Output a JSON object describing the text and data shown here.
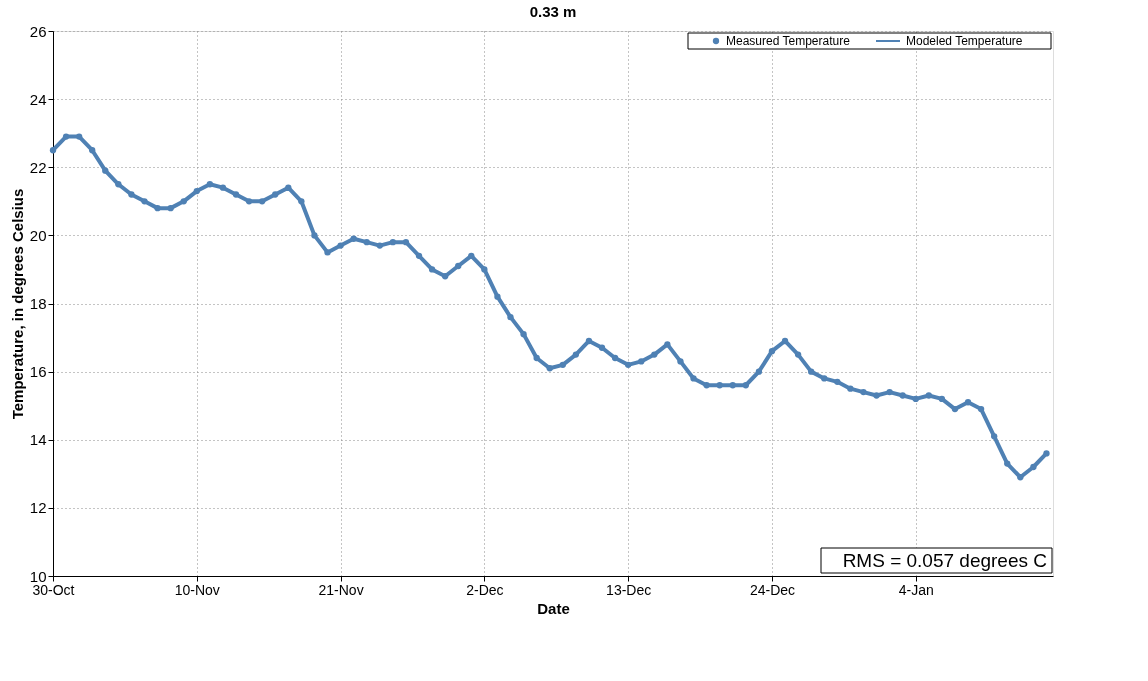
{
  "chart_data": {
    "type": "line",
    "title": "0.33 m",
    "xlabel": "Date",
    "ylabel": "Temperature, in degrees Celsius",
    "categories": [
      "30-Oct",
      null,
      null,
      null,
      null,
      null,
      null,
      null,
      null,
      null,
      null,
      "10-Nov",
      null,
      null,
      null,
      null,
      null,
      null,
      null,
      null,
      null,
      null,
      "21-Nov",
      null,
      null,
      null,
      null,
      null,
      null,
      null,
      null,
      null,
      null,
      "2-Dec",
      null,
      null,
      null,
      null,
      null,
      null,
      null,
      null,
      null,
      null,
      "13-Dec",
      null,
      null,
      null,
      null,
      null,
      null,
      null,
      null,
      null,
      null,
      "24-Dec",
      null,
      null,
      null,
      null,
      null,
      null,
      null,
      null,
      null,
      null,
      "4-Jan",
      null,
      null,
      null,
      null,
      null,
      null,
      null,
      null,
      null,
      null
    ],
    "series": [
      {
        "name": "Measured Temperature",
        "type": "scatter",
        "marker": "circle",
        "color": "#4f81b4",
        "values": [
          22.5,
          22.9,
          22.9,
          22.5,
          21.9,
          21.5,
          21.2,
          21.0,
          20.8,
          20.8,
          21.0,
          21.3,
          21.5,
          21.4,
          21.2,
          21.0,
          21.0,
          21.2,
          21.4,
          21.0,
          20.0,
          19.5,
          19.7,
          19.9,
          19.8,
          19.7,
          19.8,
          19.8,
          19.4,
          19.0,
          18.8,
          19.1,
          19.4,
          19.0,
          18.2,
          17.6,
          17.1,
          16.4,
          16.1,
          16.2,
          16.5,
          16.9,
          16.7,
          16.4,
          16.2,
          16.3,
          16.5,
          16.8,
          16.3,
          15.8,
          15.6,
          15.6,
          15.6,
          15.6,
          16.0,
          16.6,
          16.9,
          16.5,
          16.0,
          15.8,
          15.7,
          15.5,
          15.4,
          15.3,
          15.4,
          15.3,
          15.2,
          15.3,
          15.2,
          14.9,
          15.1,
          14.9,
          14.1,
          13.3,
          12.9,
          13.2,
          13.6
        ]
      },
      {
        "name": "Modeled Temperature",
        "color": "#4f81b4",
        "values": [
          22.5,
          22.9,
          22.9,
          22.5,
          21.9,
          21.5,
          21.2,
          21.0,
          20.8,
          20.8,
          21.0,
          21.3,
          21.5,
          21.4,
          21.2,
          21.0,
          21.0,
          21.2,
          21.4,
          21.0,
          20.0,
          19.5,
          19.7,
          19.9,
          19.8,
          19.7,
          19.8,
          19.8,
          19.4,
          19.0,
          18.8,
          19.1,
          19.4,
          19.0,
          18.2,
          17.6,
          17.1,
          16.4,
          16.1,
          16.2,
          16.5,
          16.9,
          16.7,
          16.4,
          16.2,
          16.3,
          16.5,
          16.8,
          16.3,
          15.8,
          15.6,
          15.6,
          15.6,
          15.6,
          16.0,
          16.6,
          16.9,
          16.5,
          16.0,
          15.8,
          15.7,
          15.5,
          15.4,
          15.3,
          15.4,
          15.3,
          15.2,
          15.3,
          15.2,
          14.9,
          15.1,
          14.9,
          14.1,
          13.3,
          12.9,
          13.2,
          13.6
        ]
      }
    ],
    "ylim": [
      10,
      26
    ],
    "yticks": [
      10,
      12,
      14,
      16,
      18,
      20,
      22,
      24,
      26
    ],
    "grid": true,
    "legend": "top right",
    "line_style": "solid",
    "annotations": [
      "RMS =  0.057 degrees C"
    ]
  }
}
